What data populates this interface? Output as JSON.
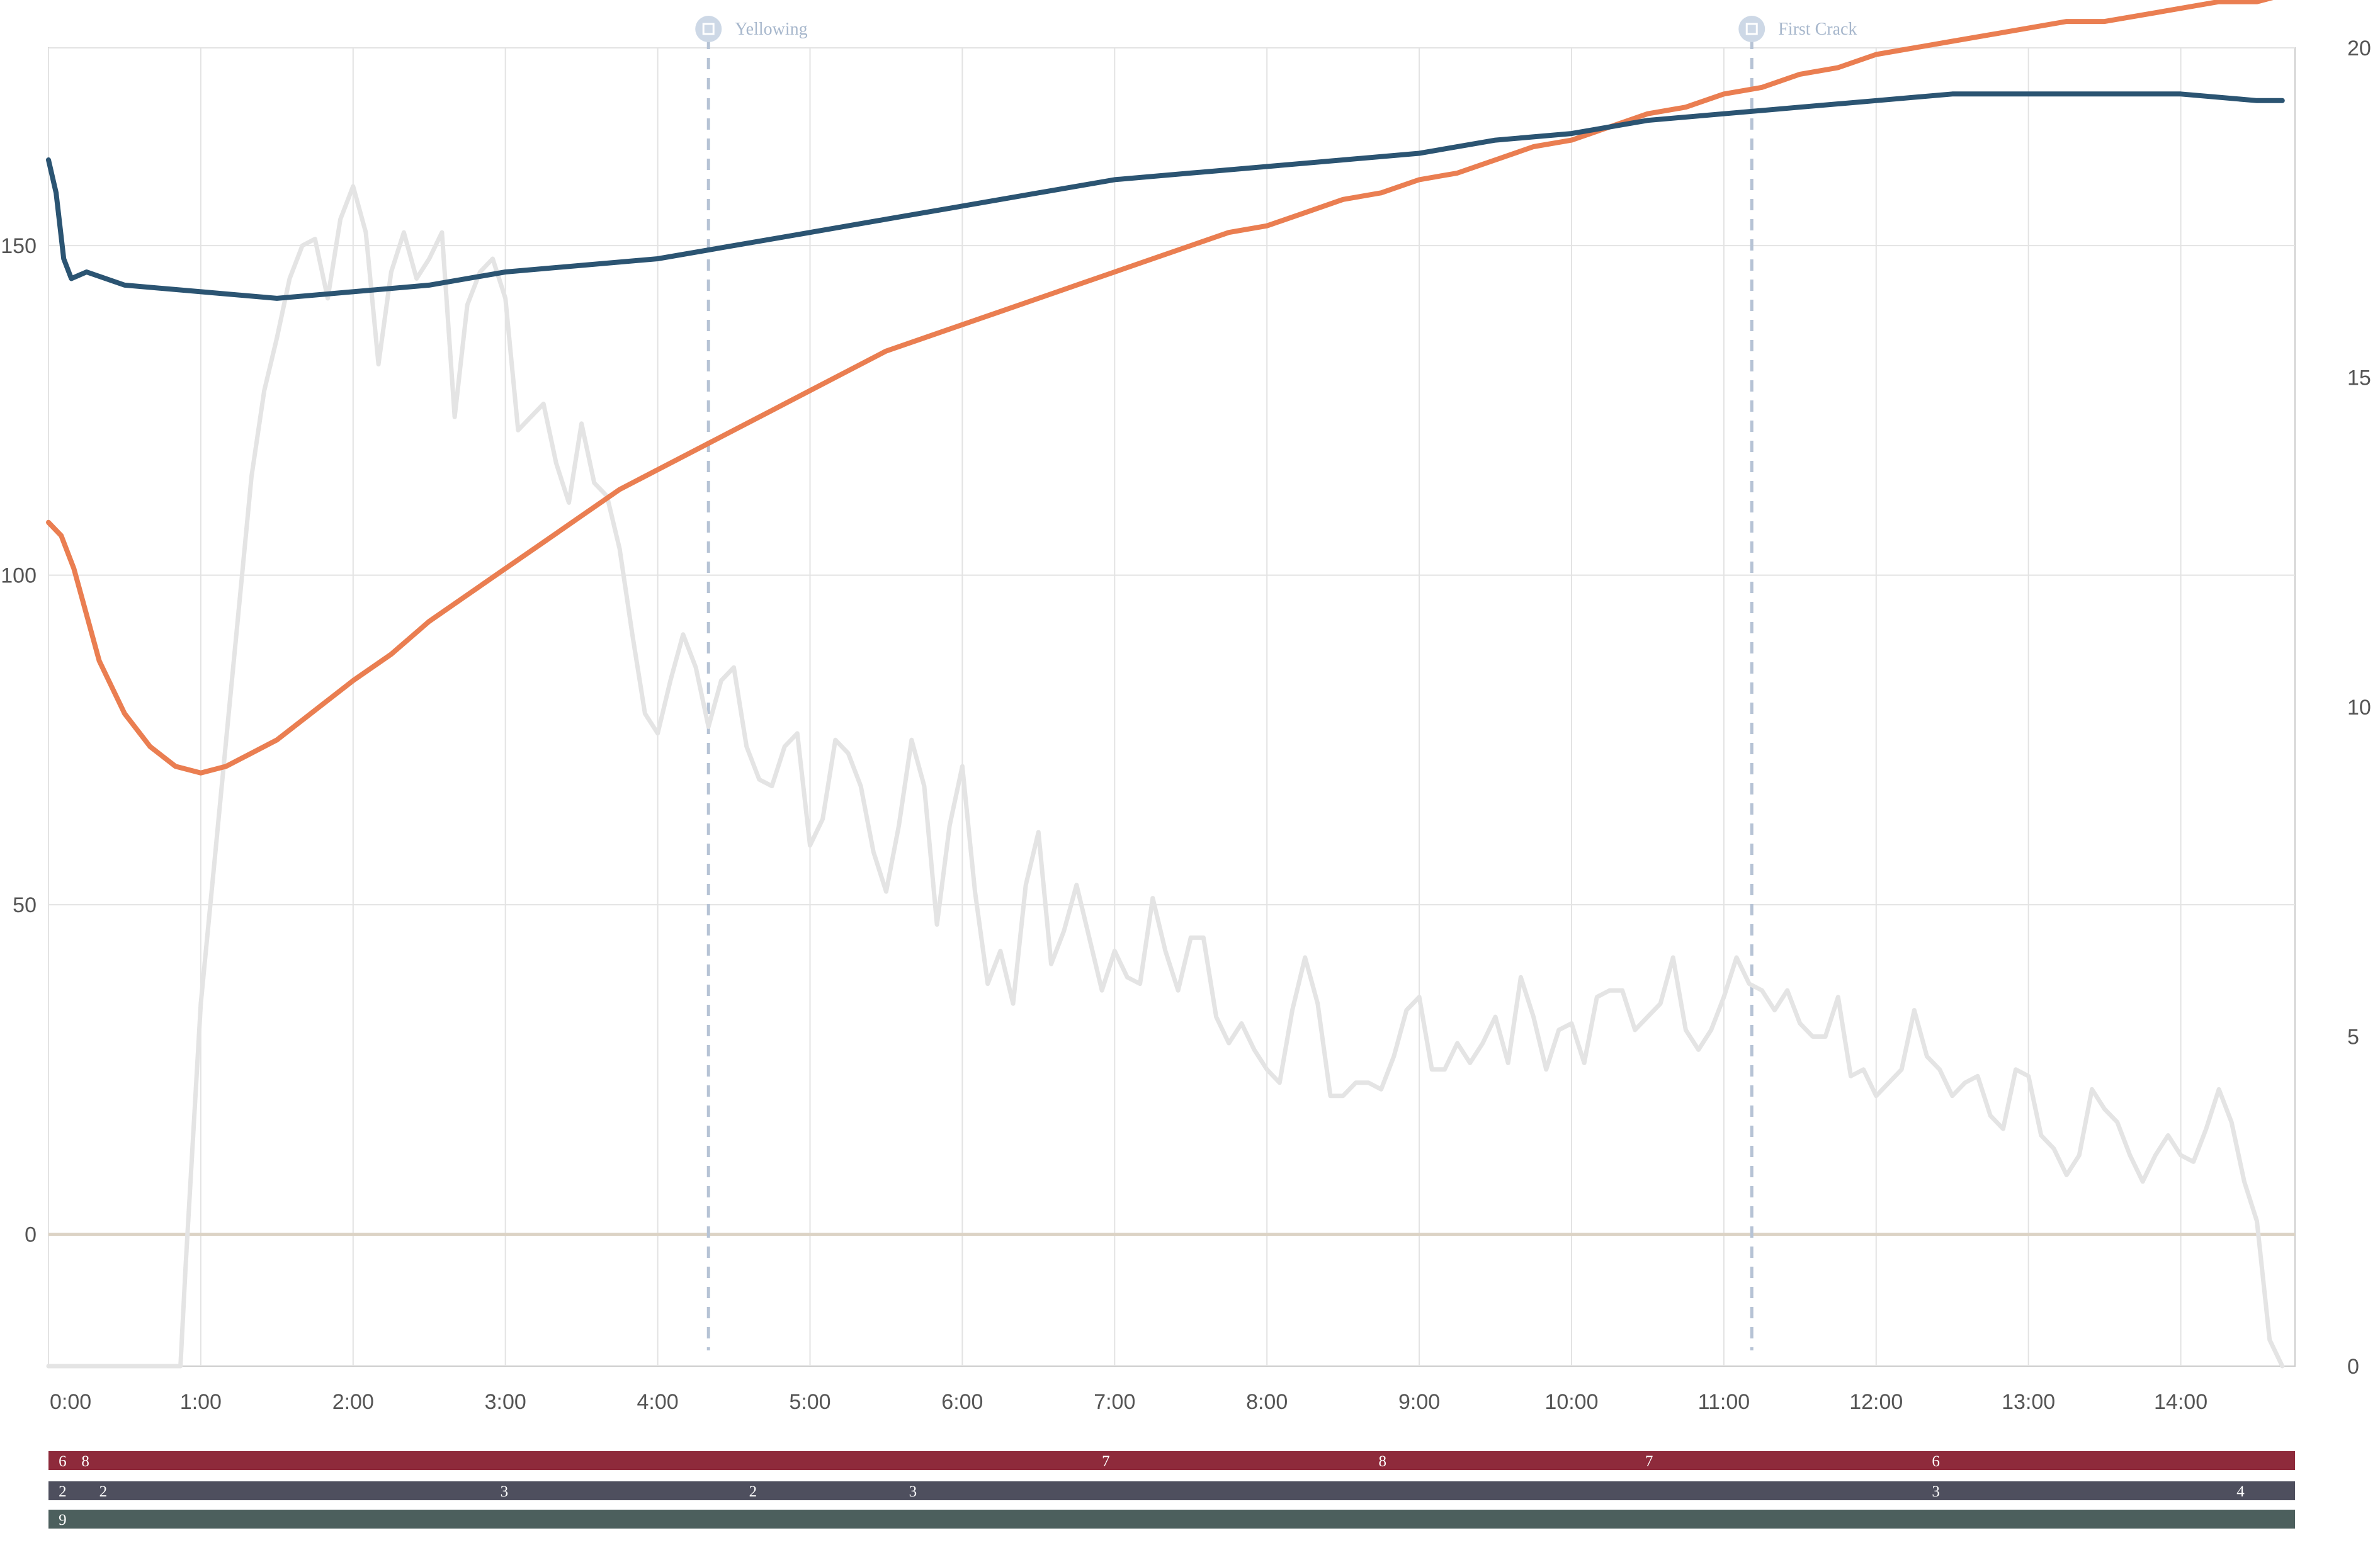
{
  "colors": {
    "bt": "#2b5472",
    "et": "#ea7e51",
    "ror": "#e4e4e4",
    "zero_line": "#dcd3c5",
    "grid": "#e3e3e3",
    "event": "#b6c3d5",
    "strip_1": "#8e2a3b",
    "strip_2": "#4e4f5e",
    "strip_3": "#4c5f5d"
  },
  "chart_data": {
    "type": "line",
    "x_unit": "seconds",
    "xlim": [
      0,
      885
    ],
    "x_ticks": [
      {
        "t": 0,
        "label": "0:00"
      },
      {
        "t": 60,
        "label": "1:00"
      },
      {
        "t": 120,
        "label": "2:00"
      },
      {
        "t": 180,
        "label": "3:00"
      },
      {
        "t": 240,
        "label": "4:00"
      },
      {
        "t": 300,
        "label": "5:00"
      },
      {
        "t": 360,
        "label": "6:00"
      },
      {
        "t": 420,
        "label": "7:00"
      },
      {
        "t": 480,
        "label": "8:00"
      },
      {
        "t": 540,
        "label": "9:00"
      },
      {
        "t": 600,
        "label": "10:00"
      },
      {
        "t": 660,
        "label": "11:00"
      },
      {
        "t": 720,
        "label": "12:00"
      },
      {
        "t": 780,
        "label": "13:00"
      },
      {
        "t": 840,
        "label": "14:00"
      }
    ],
    "y_left": {
      "lim": [
        -20,
        180
      ],
      "ticks": [
        0,
        50,
        100,
        150
      ]
    },
    "y_right": {
      "lim": [
        0,
        20
      ],
      "ticks": [
        0,
        5,
        10,
        15,
        20
      ]
    },
    "events": [
      {
        "t": 260,
        "label": "Yellowing"
      },
      {
        "t": 671,
        "label": "First Crack"
      }
    ],
    "series": [
      {
        "key": "bt",
        "axis": "left",
        "points": [
          [
            0,
            163
          ],
          [
            3,
            158
          ],
          [
            6,
            148
          ],
          [
            9,
            145
          ],
          [
            15,
            146
          ],
          [
            30,
            144
          ],
          [
            60,
            143
          ],
          [
            90,
            142
          ],
          [
            120,
            143
          ],
          [
            150,
            144
          ],
          [
            180,
            146
          ],
          [
            210,
            147
          ],
          [
            240,
            148
          ],
          [
            270,
            150
          ],
          [
            300,
            152
          ],
          [
            330,
            154
          ],
          [
            360,
            156
          ],
          [
            390,
            158
          ],
          [
            420,
            160
          ],
          [
            450,
            161
          ],
          [
            480,
            162
          ],
          [
            510,
            163
          ],
          [
            540,
            164
          ],
          [
            570,
            166
          ],
          [
            600,
            167
          ],
          [
            630,
            169
          ],
          [
            660,
            170
          ],
          [
            690,
            171
          ],
          [
            720,
            172
          ],
          [
            750,
            173
          ],
          [
            780,
            173
          ],
          [
            810,
            173
          ],
          [
            840,
            173
          ],
          [
            870,
            172
          ],
          [
            880,
            172
          ]
        ]
      },
      {
        "key": "et",
        "axis": "left",
        "points": [
          [
            0,
            108
          ],
          [
            5,
            106
          ],
          [
            10,
            101
          ],
          [
            15,
            94
          ],
          [
            20,
            87
          ],
          [
            30,
            79
          ],
          [
            40,
            74
          ],
          [
            50,
            71
          ],
          [
            60,
            70
          ],
          [
            70,
            71
          ],
          [
            80,
            73
          ],
          [
            90,
            75
          ],
          [
            100,
            78
          ],
          [
            110,
            81
          ],
          [
            120,
            84
          ],
          [
            135,
            88
          ],
          [
            150,
            93
          ],
          [
            165,
            97
          ],
          [
            180,
            101
          ],
          [
            195,
            105
          ],
          [
            210,
            109
          ],
          [
            225,
            113
          ],
          [
            240,
            116
          ],
          [
            255,
            119
          ],
          [
            270,
            122
          ],
          [
            285,
            125
          ],
          [
            300,
            128
          ],
          [
            315,
            131
          ],
          [
            330,
            134
          ],
          [
            345,
            136
          ],
          [
            360,
            138
          ],
          [
            375,
            140
          ],
          [
            390,
            142
          ],
          [
            405,
            144
          ],
          [
            420,
            146
          ],
          [
            435,
            148
          ],
          [
            450,
            150
          ],
          [
            465,
            152
          ],
          [
            480,
            153
          ],
          [
            495,
            155
          ],
          [
            510,
            157
          ],
          [
            525,
            158
          ],
          [
            540,
            160
          ],
          [
            555,
            161
          ],
          [
            570,
            163
          ],
          [
            585,
            165
          ],
          [
            600,
            166
          ],
          [
            615,
            168
          ],
          [
            630,
            170
          ],
          [
            645,
            171
          ],
          [
            660,
            173
          ],
          [
            675,
            174
          ],
          [
            690,
            176
          ],
          [
            705,
            177
          ],
          [
            720,
            179
          ],
          [
            735,
            180
          ],
          [
            750,
            181
          ],
          [
            765,
            182
          ],
          [
            780,
            183
          ],
          [
            795,
            184
          ],
          [
            810,
            184
          ],
          [
            825,
            185
          ],
          [
            840,
            186
          ],
          [
            855,
            187
          ],
          [
            870,
            187
          ],
          [
            880,
            188
          ]
        ]
      },
      {
        "key": "ror",
        "axis": "right",
        "points": [
          [
            0,
            0
          ],
          [
            52,
            0
          ],
          [
            54,
            1.5
          ],
          [
            57,
            3.5
          ],
          [
            60,
            5.5
          ],
          [
            65,
            7.5
          ],
          [
            70,
            9.5
          ],
          [
            75,
            11.5
          ],
          [
            80,
            13.5
          ],
          [
            85,
            14.8
          ],
          [
            90,
            15.6
          ],
          [
            95,
            16.5
          ],
          [
            100,
            17
          ],
          [
            105,
            17.1
          ],
          [
            110,
            16.2
          ],
          [
            115,
            17.4
          ],
          [
            120,
            17.9
          ],
          [
            125,
            17.2
          ],
          [
            130,
            15.2
          ],
          [
            135,
            16.6
          ],
          [
            140,
            17.2
          ],
          [
            145,
            16.5
          ],
          [
            150,
            16.8
          ],
          [
            155,
            17.2
          ],
          [
            160,
            14.4
          ],
          [
            165,
            16.1
          ],
          [
            170,
            16.6
          ],
          [
            175,
            16.8
          ],
          [
            180,
            16.2
          ],
          [
            185,
            14.2
          ],
          [
            190,
            14.4
          ],
          [
            195,
            14.6
          ],
          [
            200,
            13.7
          ],
          [
            205,
            13.1
          ],
          [
            210,
            14.3
          ],
          [
            215,
            13.4
          ],
          [
            220,
            13.2
          ],
          [
            225,
            12.4
          ],
          [
            230,
            11.1
          ],
          [
            235,
            9.9
          ],
          [
            240,
            9.6
          ],
          [
            245,
            10.4
          ],
          [
            250,
            11.1
          ],
          [
            255,
            10.6
          ],
          [
            260,
            9.7
          ],
          [
            265,
            10.4
          ],
          [
            270,
            10.6
          ],
          [
            275,
            9.4
          ],
          [
            280,
            8.9
          ],
          [
            285,
            8.8
          ],
          [
            290,
            9.4
          ],
          [
            295,
            9.6
          ],
          [
            300,
            7.9
          ],
          [
            305,
            8.3
          ],
          [
            310,
            9.5
          ],
          [
            315,
            9.3
          ],
          [
            320,
            8.8
          ],
          [
            325,
            7.8
          ],
          [
            330,
            7.2
          ],
          [
            335,
            8.2
          ],
          [
            340,
            9.5
          ],
          [
            345,
            8.8
          ],
          [
            350,
            6.7
          ],
          [
            355,
            8.2
          ],
          [
            360,
            9.1
          ],
          [
            365,
            7.2
          ],
          [
            370,
            5.8
          ],
          [
            375,
            6.3
          ],
          [
            380,
            5.5
          ],
          [
            385,
            7.3
          ],
          [
            390,
            8.1
          ],
          [
            395,
            6.1
          ],
          [
            400,
            6.6
          ],
          [
            405,
            7.3
          ],
          [
            410,
            6.5
          ],
          [
            415,
            5.7
          ],
          [
            420,
            6.3
          ],
          [
            425,
            5.9
          ],
          [
            430,
            5.8
          ],
          [
            435,
            7.1
          ],
          [
            440,
            6.3
          ],
          [
            445,
            5.7
          ],
          [
            450,
            6.5
          ],
          [
            455,
            6.5
          ],
          [
            460,
            5.3
          ],
          [
            465,
            4.9
          ],
          [
            470,
            5.2
          ],
          [
            475,
            4.8
          ],
          [
            480,
            4.5
          ],
          [
            485,
            4.3
          ],
          [
            490,
            5.4
          ],
          [
            495,
            6.2
          ],
          [
            500,
            5.5
          ],
          [
            505,
            4.1
          ],
          [
            510,
            4.1
          ],
          [
            515,
            4.3
          ],
          [
            520,
            4.3
          ],
          [
            525,
            4.2
          ],
          [
            530,
            4.7
          ],
          [
            535,
            5.4
          ],
          [
            540,
            5.6
          ],
          [
            545,
            4.5
          ],
          [
            550,
            4.5
          ],
          [
            555,
            4.9
          ],
          [
            560,
            4.6
          ],
          [
            565,
            4.9
          ],
          [
            570,
            5.3
          ],
          [
            575,
            4.6
          ],
          [
            580,
            5.9
          ],
          [
            585,
            5.3
          ],
          [
            590,
            4.5
          ],
          [
            595,
            5.1
          ],
          [
            600,
            5.2
          ],
          [
            605,
            4.6
          ],
          [
            610,
            5.6
          ],
          [
            615,
            5.7
          ],
          [
            620,
            5.7
          ],
          [
            625,
            5.1
          ],
          [
            630,
            5.3
          ],
          [
            635,
            5.5
          ],
          [
            640,
            6.2
          ],
          [
            645,
            5.1
          ],
          [
            650,
            4.8
          ],
          [
            655,
            5.1
          ],
          [
            660,
            5.6
          ],
          [
            665,
            6.2
          ],
          [
            670,
            5.8
          ],
          [
            675,
            5.7
          ],
          [
            680,
            5.4
          ],
          [
            685,
            5.7
          ],
          [
            690,
            5.2
          ],
          [
            695,
            5
          ],
          [
            700,
            5
          ],
          [
            705,
            5.6
          ],
          [
            710,
            4.4
          ],
          [
            715,
            4.5
          ],
          [
            720,
            4.1
          ],
          [
            725,
            4.3
          ],
          [
            730,
            4.5
          ],
          [
            735,
            5.4
          ],
          [
            740,
            4.7
          ],
          [
            745,
            4.5
          ],
          [
            750,
            4.1
          ],
          [
            755,
            4.3
          ],
          [
            760,
            4.4
          ],
          [
            765,
            3.8
          ],
          [
            770,
            3.6
          ],
          [
            775,
            4.5
          ],
          [
            780,
            4.4
          ],
          [
            785,
            3.5
          ],
          [
            790,
            3.3
          ],
          [
            795,
            2.9
          ],
          [
            800,
            3.2
          ],
          [
            805,
            4.2
          ],
          [
            810,
            3.9
          ],
          [
            815,
            3.7
          ],
          [
            820,
            3.2
          ],
          [
            825,
            2.8
          ],
          [
            830,
            3.2
          ],
          [
            835,
            3.5
          ],
          [
            840,
            3.2
          ],
          [
            845,
            3.1
          ],
          [
            850,
            3.6
          ],
          [
            855,
            4.2
          ],
          [
            860,
            3.7
          ],
          [
            865,
            2.8
          ],
          [
            870,
            2.2
          ],
          [
            875,
            0.4
          ],
          [
            880,
            0
          ]
        ]
      }
    ],
    "bottom_strips": [
      {
        "key": "strip_1",
        "labels": [
          {
            "t": 2,
            "text": "6"
          },
          {
            "t": 11,
            "text": "8"
          },
          {
            "t": 413,
            "text": "7"
          },
          {
            "t": 522,
            "text": "8"
          },
          {
            "t": 627,
            "text": "7"
          },
          {
            "t": 740,
            "text": "6"
          }
        ]
      },
      {
        "key": "strip_2",
        "labels": [
          {
            "t": 2,
            "text": "2"
          },
          {
            "t": 18,
            "text": "2"
          },
          {
            "t": 176,
            "text": "3"
          },
          {
            "t": 274,
            "text": "2"
          },
          {
            "t": 337,
            "text": "3"
          },
          {
            "t": 740,
            "text": "3"
          },
          {
            "t": 860,
            "text": "4"
          }
        ]
      },
      {
        "key": "strip_3",
        "labels": [
          {
            "t": 2,
            "text": "9"
          }
        ]
      }
    ]
  }
}
